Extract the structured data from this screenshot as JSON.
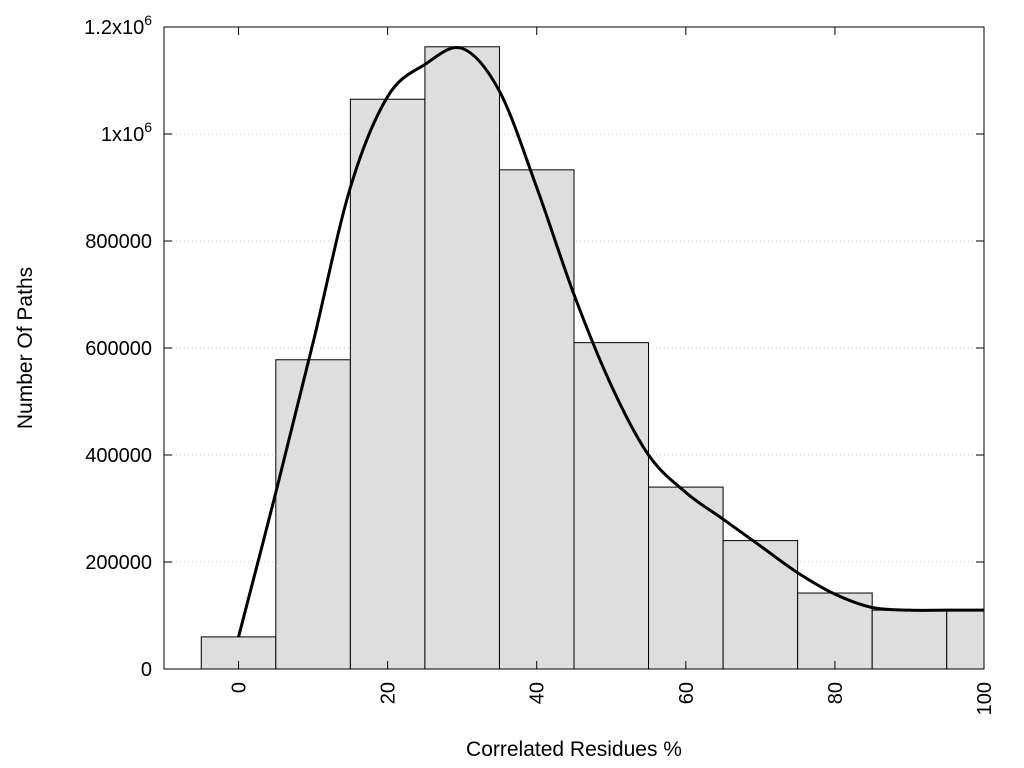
{
  "chart_data": {
    "type": "bar",
    "title": "",
    "xlabel": "Correlated Residues %",
    "ylabel": "Number Of Paths",
    "xlim": [
      -10,
      100
    ],
    "ylim": [
      0,
      1200000
    ],
    "grid": true,
    "legend": "none",
    "bar_color": "#dedede",
    "bar_edge_color": "#000000",
    "line_color": "#000000",
    "x_ticks": [
      {
        "value": 0,
        "label": "0"
      },
      {
        "value": 20,
        "label": "20"
      },
      {
        "value": 40,
        "label": "40"
      },
      {
        "value": 60,
        "label": "60"
      },
      {
        "value": 80,
        "label": "80"
      },
      {
        "value": 100,
        "label": "100"
      }
    ],
    "y_ticks": [
      {
        "value": 0,
        "base": "0",
        "sup": ""
      },
      {
        "value": 200000,
        "base": "200000",
        "sup": ""
      },
      {
        "value": 400000,
        "base": "400000",
        "sup": ""
      },
      {
        "value": 600000,
        "base": "600000",
        "sup": ""
      },
      {
        "value": 800000,
        "base": "800000",
        "sup": ""
      },
      {
        "value": 1000000,
        "base": "1x10",
        "sup": "6"
      },
      {
        "value": 1200000,
        "base": "1.2x10",
        "sup": "6"
      }
    ],
    "bars": [
      {
        "x_start": -5,
        "x_end": 5,
        "value": 60000
      },
      {
        "x_start": 5,
        "x_end": 15,
        "value": 578000
      },
      {
        "x_start": 15,
        "x_end": 25,
        "value": 1065000
      },
      {
        "x_start": 25,
        "x_end": 35,
        "value": 1163000
      },
      {
        "x_start": 35,
        "x_end": 45,
        "value": 933000
      },
      {
        "x_start": 45,
        "x_end": 55,
        "value": 610000
      },
      {
        "x_start": 55,
        "x_end": 65,
        "value": 340000
      },
      {
        "x_start": 65,
        "x_end": 75,
        "value": 240000
      },
      {
        "x_start": 75,
        "x_end": 85,
        "value": 142000
      },
      {
        "x_start": 85,
        "x_end": 95,
        "value": 110000
      },
      {
        "x_start": 95,
        "x_end": 100,
        "value": 110000
      }
    ],
    "curve": {
      "x": [
        0,
        5,
        10,
        15,
        20,
        25,
        30,
        35,
        40,
        45,
        50,
        55,
        60,
        65,
        70,
        75,
        80,
        85,
        90,
        95,
        100
      ],
      "y": [
        60000,
        330000,
        610000,
        900000,
        1070000,
        1130000,
        1160000,
        1080000,
        900000,
        700000,
        530000,
        400000,
        330000,
        280000,
        230000,
        180000,
        140000,
        115000,
        110000,
        110000,
        110000
      ]
    }
  }
}
